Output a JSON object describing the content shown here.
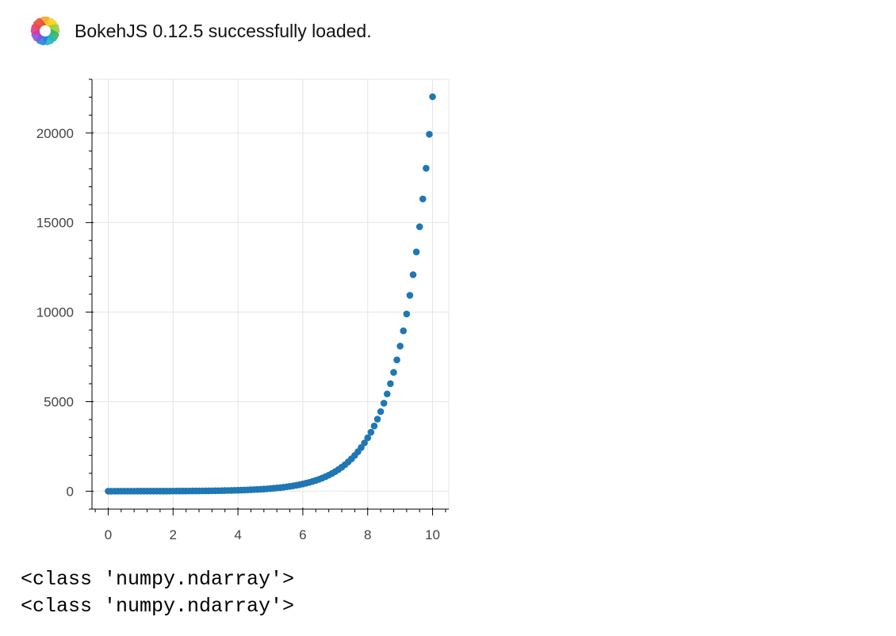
{
  "banner": {
    "logo_icon": "bokeh-logo-icon",
    "message": "BokehJS 0.12.5 successfully loaded."
  },
  "chart_data": {
    "type": "scatter",
    "title": "",
    "xlabel": "",
    "ylabel": "",
    "xlim": [
      -0.5,
      10.5
    ],
    "ylim": [
      -1000,
      23000
    ],
    "x_ticks": [
      0,
      2,
      4,
      6,
      8,
      10
    ],
    "y_ticks": [
      0,
      5000,
      10000,
      15000,
      20000
    ],
    "x_tick_labels": [
      "0",
      "2",
      "4",
      "6",
      "8",
      "10"
    ],
    "y_tick_labels": [
      "0",
      "5000",
      "10000",
      "15000",
      "20000"
    ],
    "grid": true,
    "marker_color": "#1f77b4",
    "series": [
      {
        "x": [
          0,
          0.1,
          0.2,
          0.3,
          0.4,
          0.5,
          0.6,
          0.7,
          0.8,
          0.9,
          1.0,
          1.1,
          1.2,
          1.3,
          1.4,
          1.5,
          1.6,
          1.7,
          1.8,
          1.9,
          2.0,
          2.1,
          2.2,
          2.3,
          2.4,
          2.5,
          2.6,
          2.7,
          2.8,
          2.9,
          3.0,
          3.1,
          3.2,
          3.3,
          3.4,
          3.5,
          3.6,
          3.7,
          3.8,
          3.9,
          4.0,
          4.1,
          4.2,
          4.3,
          4.4,
          4.5,
          4.6,
          4.7,
          4.8,
          4.9,
          5.0,
          5.1,
          5.2,
          5.3,
          5.4,
          5.5,
          5.6,
          5.7,
          5.8,
          5.9,
          6.0,
          6.1,
          6.2,
          6.3,
          6.4,
          6.5,
          6.6,
          6.7,
          6.8,
          6.9,
          7.0,
          7.1,
          7.2,
          7.3,
          7.4,
          7.5,
          7.6,
          7.7,
          7.8,
          7.9,
          8.0,
          8.1,
          8.2,
          8.3,
          8.4,
          8.5,
          8.6,
          8.7,
          8.8,
          8.9,
          9.0,
          9.1,
          9.2,
          9.3,
          9.4,
          9.5,
          9.6,
          9.7,
          9.8,
          9.9,
          10.0
        ],
        "y": [
          1,
          1.1,
          1.2,
          1.3,
          1.5,
          1.6,
          1.8,
          2.0,
          2.2,
          2.5,
          2.7,
          3.0,
          3.3,
          3.7,
          4.1,
          4.5,
          5.0,
          5.5,
          6.0,
          6.7,
          7.4,
          8.2,
          9.0,
          10.0,
          11.0,
          12.2,
          13.5,
          14.9,
          16.4,
          18.2,
          20.1,
          22.2,
          24.5,
          27.1,
          30.0,
          33.1,
          36.6,
          40.4,
          44.7,
          49.4,
          54.6,
          60.3,
          66.7,
          73.7,
          81.5,
          90.0,
          99.5,
          110,
          122,
          134,
          148,
          164,
          181,
          200,
          221,
          245,
          270,
          299,
          330,
          365,
          403,
          446,
          493,
          545,
          602,
          665,
          735,
          812,
          898,
          992,
          1097,
          1212,
          1339,
          1480,
          1636,
          1808,
          1998,
          2208,
          2440,
          2697,
          2981,
          3294,
          3641,
          4024,
          4447,
          4915,
          5432,
          6003,
          6634,
          7332,
          8103,
          8955,
          9897,
          10938,
          12088,
          13360,
          14765,
          16318,
          18034,
          19930,
          22026
        ]
      }
    ]
  },
  "output": {
    "lines": [
      "<class 'numpy.ndarray'>",
      "<class 'numpy.ndarray'>"
    ]
  }
}
